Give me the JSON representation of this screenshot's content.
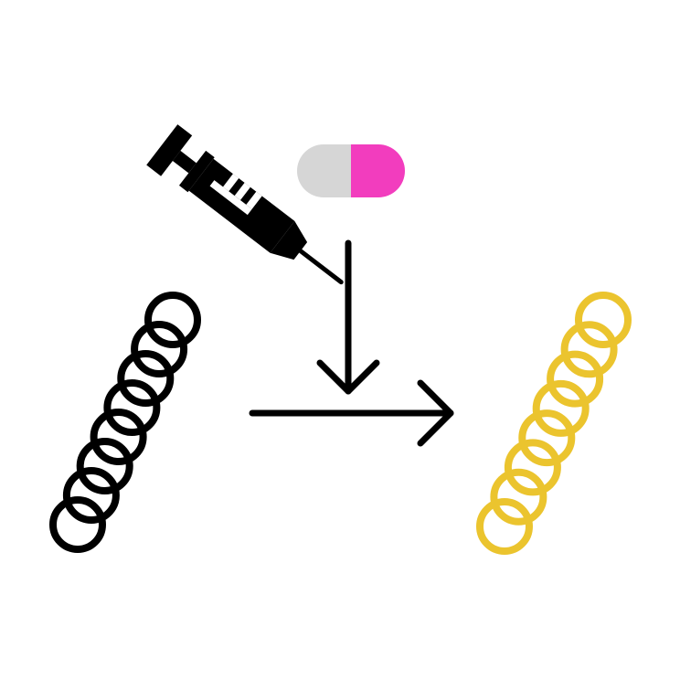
{
  "diagram": {
    "icons": {
      "syringe": "syringe-icon",
      "pill": "capsule-pill-icon",
      "input_chain": "bead-chain-icon",
      "output_chain": "bead-chain-icon",
      "down_arrow": "arrow-down-icon",
      "right_arrow": "arrow-right-icon"
    },
    "colors": {
      "stroke": "#000000",
      "background": "#ffffff",
      "pill_left": "#d6d6d6",
      "pill_right": "#f23dbe",
      "output_chain": "#ebc42e"
    },
    "input_chain": {
      "bead_count": 8
    },
    "output_chain": {
      "bead_count": 8
    }
  }
}
